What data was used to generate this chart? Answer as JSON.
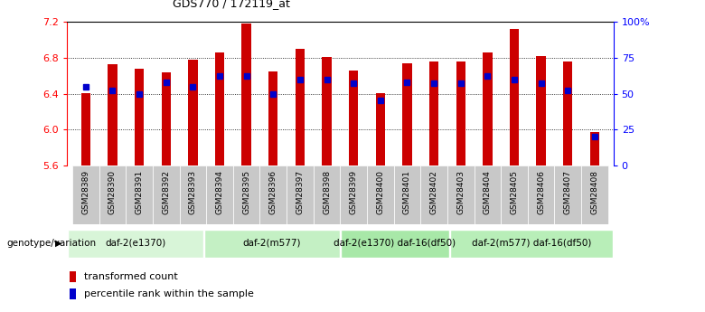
{
  "title": "GDS770 / 172119_at",
  "samples": [
    "GSM28389",
    "GSM28390",
    "GSM28391",
    "GSM28392",
    "GSM28393",
    "GSM28394",
    "GSM28395",
    "GSM28396",
    "GSM28397",
    "GSM28398",
    "GSM28399",
    "GSM28400",
    "GSM28401",
    "GSM28402",
    "GSM28403",
    "GSM28404",
    "GSM28405",
    "GSM28406",
    "GSM28407",
    "GSM28408"
  ],
  "transformed_count": [
    6.41,
    6.73,
    6.68,
    6.64,
    6.78,
    6.86,
    7.18,
    6.65,
    6.9,
    6.81,
    6.66,
    6.4,
    6.74,
    6.76,
    6.76,
    6.86,
    7.12,
    6.82,
    6.76,
    5.97
  ],
  "percentile_rank": [
    55,
    52,
    50,
    58,
    55,
    62,
    62,
    50,
    60,
    60,
    57,
    45,
    58,
    57,
    57,
    62,
    60,
    57,
    52,
    20
  ],
  "ylim_left": [
    5.6,
    7.2
  ],
  "ylim_right": [
    0,
    100
  ],
  "yticks_left": [
    5.6,
    6.0,
    6.4,
    6.8,
    7.2
  ],
  "yticks_right": [
    0,
    25,
    50,
    75,
    100
  ],
  "bar_color": "#cc0000",
  "dot_color": "#0000cc",
  "groups": [
    {
      "label": "daf-2(e1370)",
      "start": 0,
      "end": 5,
      "color": "#ccffcc"
    },
    {
      "label": "daf-2(m577)",
      "start": 5,
      "end": 10,
      "color": "#aaffaa"
    },
    {
      "label": "daf-2(e1370) daf-16(df50)",
      "start": 10,
      "end": 14,
      "color": "#88ee88"
    },
    {
      "label": "daf-2(m577) daf-16(df50)",
      "start": 14,
      "end": 20,
      "color": "#aaffaa"
    }
  ],
  "genotype_label": "genotype/variation",
  "legend_red_label": "transformed count",
  "legend_blue_label": "percentile rank within the sample",
  "bar_width": 0.35
}
